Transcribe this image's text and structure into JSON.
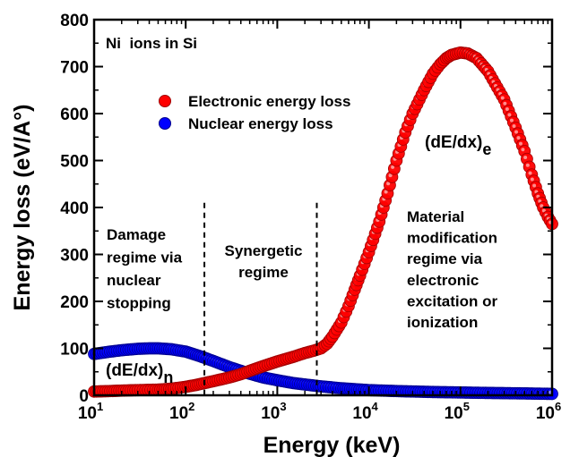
{
  "chart_data": {
    "type": "scatter",
    "x_scale": "log",
    "xlim": [
      10,
      1000000
    ],
    "ylim": [
      0,
      800
    ],
    "xlabel": "Energy (keV)",
    "ylabel": "Energy loss (eV/A°)",
    "x_tick_labels": [
      {
        "base": "10",
        "exp": "1"
      },
      {
        "base": "10",
        "exp": "2"
      },
      {
        "base": "10",
        "exp": "3"
      },
      {
        "base": "10",
        "exp": "4"
      },
      {
        "base": "10",
        "exp": "5"
      },
      {
        "base": "10",
        "exp": "6"
      }
    ],
    "x_ticks": [
      10,
      100,
      1000,
      10000,
      100000,
      1000000
    ],
    "y_ticks": [
      0,
      100,
      200,
      300,
      400,
      500,
      600,
      700,
      800
    ],
    "y_tick_labels": [
      "0",
      "100",
      "200",
      "300",
      "400",
      "500",
      "600",
      "700",
      "800"
    ],
    "inset_title": "Ni  ions in Si",
    "legend": {
      "placement": "upper-left",
      "entries": [
        {
          "label": "Electronic energy loss",
          "color": "#ff0000"
        },
        {
          "label": "Nuclear energy loss",
          "color": "#0000ff"
        }
      ]
    },
    "series": [
      {
        "name": "Electronic energy loss",
        "color": "#ff0000",
        "points": [
          [
            10,
            8
          ],
          [
            15,
            9
          ],
          [
            20,
            10
          ],
          [
            30,
            11
          ],
          [
            50,
            12
          ],
          [
            70,
            14
          ],
          [
            100,
            18
          ],
          [
            130,
            22
          ],
          [
            160,
            26
          ],
          [
            200,
            30
          ],
          [
            300,
            38
          ],
          [
            400,
            45
          ],
          [
            500,
            52
          ],
          [
            700,
            62
          ],
          [
            1000,
            72
          ],
          [
            1500,
            82
          ],
          [
            2000,
            90
          ],
          [
            2500,
            95
          ],
          [
            3000,
            100
          ],
          [
            3500,
            110
          ],
          [
            4000,
            125
          ],
          [
            5000,
            155
          ],
          [
            6000,
            190
          ],
          [
            7000,
            225
          ],
          [
            8000,
            255
          ],
          [
            10000,
            305
          ],
          [
            13000,
            370
          ],
          [
            16000,
            430
          ],
          [
            20000,
            500
          ],
          [
            25000,
            560
          ],
          [
            30000,
            600
          ],
          [
            40000,
            650
          ],
          [
            50000,
            685
          ],
          [
            60000,
            705
          ],
          [
            70000,
            718
          ],
          [
            80000,
            725
          ],
          [
            100000,
            730
          ],
          [
            120000,
            728
          ],
          [
            150000,
            718
          ],
          [
            200000,
            690
          ],
          [
            300000,
            630
          ],
          [
            400000,
            570
          ],
          [
            500000,
            520
          ],
          [
            600000,
            470
          ],
          [
            700000,
            430
          ],
          [
            800000,
            400
          ],
          [
            900000,
            380
          ],
          [
            1000000,
            365
          ]
        ]
      },
      {
        "name": "Nuclear energy loss",
        "color": "#0000ff",
        "points": [
          [
            10,
            88
          ],
          [
            15,
            93
          ],
          [
            20,
            96
          ],
          [
            30,
            99
          ],
          [
            40,
            100
          ],
          [
            50,
            100
          ],
          [
            70,
            98
          ],
          [
            100,
            93
          ],
          [
            130,
            86
          ],
          [
            160,
            80
          ],
          [
            200,
            73
          ],
          [
            300,
            60
          ],
          [
            400,
            52
          ],
          [
            500,
            46
          ],
          [
            700,
            38
          ],
          [
            1000,
            32
          ],
          [
            1500,
            26
          ],
          [
            2000,
            23
          ],
          [
            3000,
            19
          ],
          [
            5000,
            15
          ],
          [
            7000,
            13
          ],
          [
            10000,
            11
          ],
          [
            20000,
            9
          ],
          [
            50000,
            7
          ],
          [
            100000,
            6
          ],
          [
            200000,
            5
          ],
          [
            500000,
            4
          ],
          [
            1000000,
            3
          ]
        ]
      }
    ],
    "vlines": [
      160,
      2700
    ],
    "annotations": [
      {
        "key": "damage",
        "lines": [
          "Damage",
          "regime via",
          "nuclear",
          "stopping"
        ]
      },
      {
        "key": "synergetic",
        "lines": [
          "Synergetic",
          "regime"
        ]
      },
      {
        "key": "material",
        "lines": [
          "Material",
          "modification",
          "regime via",
          "electronic",
          "excitation or",
          "ionization"
        ]
      },
      {
        "key": "dedx_e",
        "base": "(dE/dx)",
        "sub": "e"
      },
      {
        "key": "dedx_n",
        "base": "(dE/dx)",
        "sub": "n"
      }
    ]
  }
}
